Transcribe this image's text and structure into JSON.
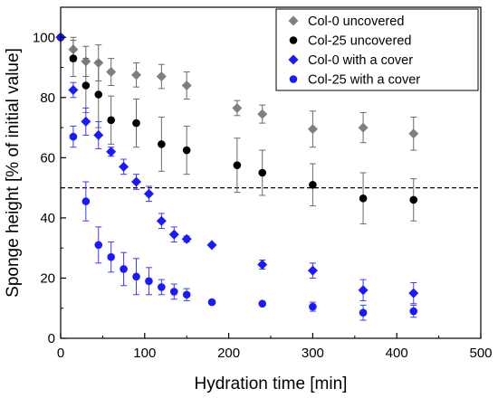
{
  "chart_data": {
    "type": "scatter",
    "xlabel": "Hydration time [min]",
    "ylabel": "Sponge height [% of initial value]",
    "xlim": [
      0,
      500
    ],
    "ylim": [
      0,
      110
    ],
    "x_ticks": [
      0,
      100,
      200,
      300,
      400,
      500
    ],
    "y_ticks": [
      0,
      20,
      40,
      60,
      80,
      100
    ],
    "grid": false,
    "legend_position": "top-right",
    "reference_line": {
      "y": 50,
      "style": "dashed"
    },
    "series": [
      {
        "name": "Col-0 uncovered",
        "marker": "diamond",
        "color": "#7f7f7f",
        "x": [
          0,
          15,
          30,
          45,
          60,
          90,
          120,
          150,
          210,
          240,
          300,
          360,
          420
        ],
        "y": [
          100,
          96,
          92,
          91.5,
          88.5,
          87.5,
          87,
          84,
          76.5,
          74.5,
          69.5,
          70,
          68
        ],
        "err": [
          0,
          4,
          5,
          6,
          4.5,
          4,
          4,
          4.5,
          2.5,
          3,
          6,
          5,
          5.5
        ]
      },
      {
        "name": "Col-25 uncovered",
        "marker": "circle",
        "color": "#000000",
        "x": [
          0,
          15,
          30,
          45,
          60,
          90,
          120,
          150,
          210,
          240,
          300,
          360,
          420
        ],
        "y": [
          100,
          93,
          84,
          81,
          72.5,
          71.5,
          64.5,
          62.5,
          57.5,
          55,
          51,
          46.5,
          46
        ],
        "err": [
          0,
          6,
          9,
          11,
          8,
          8,
          9,
          8,
          9,
          7.5,
          7,
          8.5,
          7
        ]
      },
      {
        "name": "Col-0 with a cover",
        "marker": "diamond",
        "color": "#1a1aff",
        "x": [
          0,
          15,
          30,
          45,
          60,
          75,
          90,
          105,
          120,
          135,
          150,
          180,
          240,
          300,
          360,
          420
        ],
        "y": [
          100,
          82.5,
          72,
          67.5,
          62,
          57,
          52,
          48,
          39,
          34.5,
          33,
          31,
          24.5,
          22.5,
          16,
          15
        ],
        "err": [
          0,
          2.5,
          4.5,
          4.5,
          1.5,
          2.5,
          2.5,
          2.5,
          2.5,
          2.5,
          1,
          0.5,
          1.5,
          2.5,
          3.5,
          3.5
        ]
      },
      {
        "name": "Col-25 with a cover",
        "marker": "circle",
        "color": "#1a1aff",
        "x": [
          15,
          30,
          45,
          60,
          75,
          90,
          105,
          120,
          135,
          150,
          180,
          240,
          300,
          360,
          420
        ],
        "y": [
          67,
          45.5,
          31,
          27,
          23,
          20.5,
          19,
          17,
          15.5,
          14.5,
          12,
          11.5,
          10.5,
          8.5,
          9
        ],
        "err": [
          3.5,
          6.5,
          6,
          5,
          5.5,
          6,
          4.5,
          2.5,
          2.5,
          2,
          0.5,
          0.5,
          1.5,
          2.5,
          2
        ]
      }
    ]
  }
}
